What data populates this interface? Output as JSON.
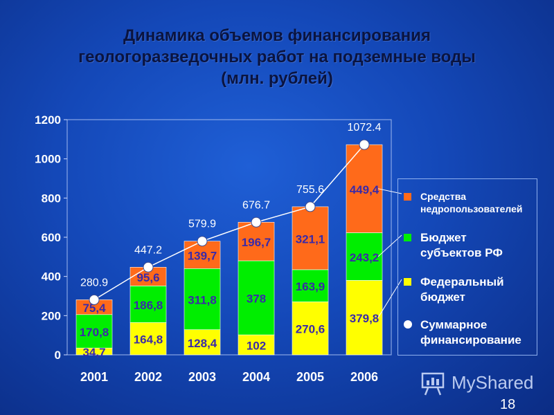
{
  "title": {
    "line1": "Динамика объемов финансирования",
    "line2": "геологоразведочных работ на подземные воды",
    "line3": "(млн. рублей)"
  },
  "chart_data": {
    "type": "bar",
    "stacked": true,
    "categories": [
      "2001",
      "2002",
      "2003",
      "2004",
      "2005",
      "2006"
    ],
    "ylim": [
      0,
      1200
    ],
    "yticks": [
      "0",
      "200",
      "400",
      "600",
      "800",
      "1000",
      "1200"
    ],
    "grid": false,
    "legend_position": "right",
    "series": [
      {
        "name": "Федеральный бюджет",
        "color": "#ffff00",
        "values": [
          34.7,
          164.8,
          128.4,
          102,
          270.6,
          379.8
        ],
        "labels": [
          "34,7",
          "164,8",
          "128,4",
          "102",
          "270,6",
          "379,8"
        ]
      },
      {
        "name": "Бюджет субъектов РФ",
        "color": "#00ee00",
        "values": [
          170.8,
          186.8,
          311.8,
          378,
          163.9,
          243.2
        ],
        "labels": [
          "170,8",
          "186,8",
          "311,8",
          "378",
          "163,9",
          "243,2"
        ]
      },
      {
        "name": "Средства недропользователей",
        "color": "#ff6a1a",
        "values": [
          75.4,
          95.6,
          139.7,
          196.7,
          321.1,
          449.4
        ],
        "labels": [
          "75,4",
          "95,6",
          "139,7",
          "196,7",
          "321,1",
          "449,4"
        ]
      }
    ],
    "totals": {
      "name": "Суммарное финансирование",
      "values": [
        280.9,
        447.2,
        579.9,
        676.7,
        755.6,
        1072.4
      ],
      "labels": [
        "280.9",
        "447.2",
        "579.9",
        "676.7",
        "755.6",
        "1072.4"
      ]
    }
  },
  "legend": {
    "item1_line1": "Средства",
    "item1_line2": "недропользователей",
    "item2_line1": "Бюджет",
    "item2_line2": "субъектов РФ",
    "item3_line1": "Федеральный",
    "item3_line2": "бюджет",
    "item4_line1": "Суммарное",
    "item4_line2": "финансирование",
    "color1": "#ff6a1a",
    "color2": "#00ee00",
    "color3": "#ffff00"
  },
  "watermark": "MyShared",
  "page_number": "18"
}
